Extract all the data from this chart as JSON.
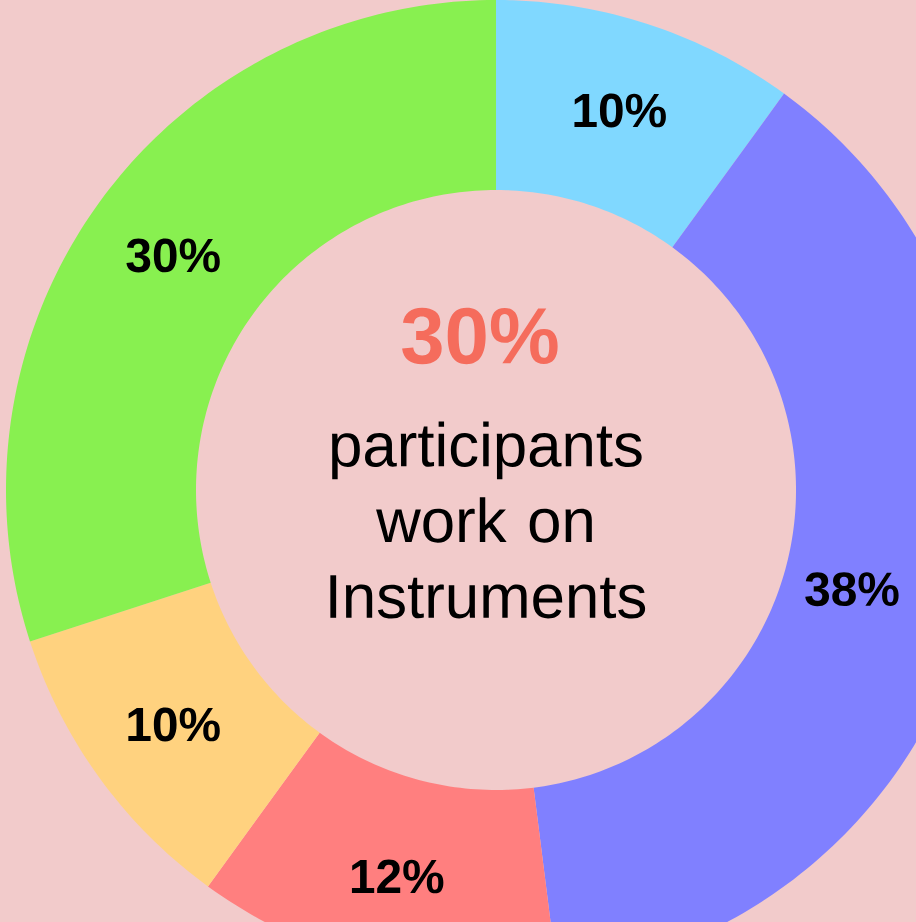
{
  "chart_data": {
    "type": "donut",
    "categories": [
      null,
      null,
      null,
      null,
      null
    ],
    "values": [
      10,
      38,
      12,
      10,
      30
    ],
    "colors": [
      "#80d8ff",
      "#8080ff",
      "#ff7f7f",
      "#ffd27f",
      "#88f050"
    ],
    "value_labels": [
      "10%",
      "38%",
      "12%",
      "10%",
      "30%"
    ],
    "annotations": [
      "30%",
      "participants work on Instruments"
    ]
  }
}
